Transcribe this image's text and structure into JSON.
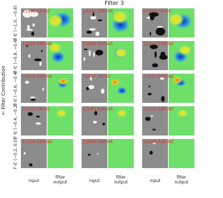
{
  "title": "Filter 3",
  "side_label": "← Filter Contribution",
  "rows": [
    {
      "label": "F ∈ (−1.0, −0.8)",
      "panels": [
        "11906 CR-NE",
        "12041 EAR-NE",
        "11906 CR-NE"
      ]
    },
    {
      "label": "F ∈ (−0.8, −0.6)",
      "panels": [
        "11449 EAR-NE",
        "11884 EAR-NE",
        "11807 EAR-NE"
      ]
    },
    {
      "label": "F ∈ (−0.6, −0.4)",
      "panels": [
        "11634 EAR-NE",
        "11547 CR-NE",
        "11813 EAR-NE"
      ]
    },
    {
      "label": "F ∈ (−0.4, −0.2)",
      "panels": [
        "11137 CR-NE",
        "11581 EAR-NE",
        "11932 EAR-NE"
      ]
    },
    {
      "label": "F ∈ (−0.2, 0.0)",
      "panels": [
        "11736 EAR-NE",
        "11869 EAR-NE",
        "11698 EAR-NE"
      ]
    }
  ],
  "input_label": "input",
  "output_label": [
    "filter",
    "output"
  ]
}
